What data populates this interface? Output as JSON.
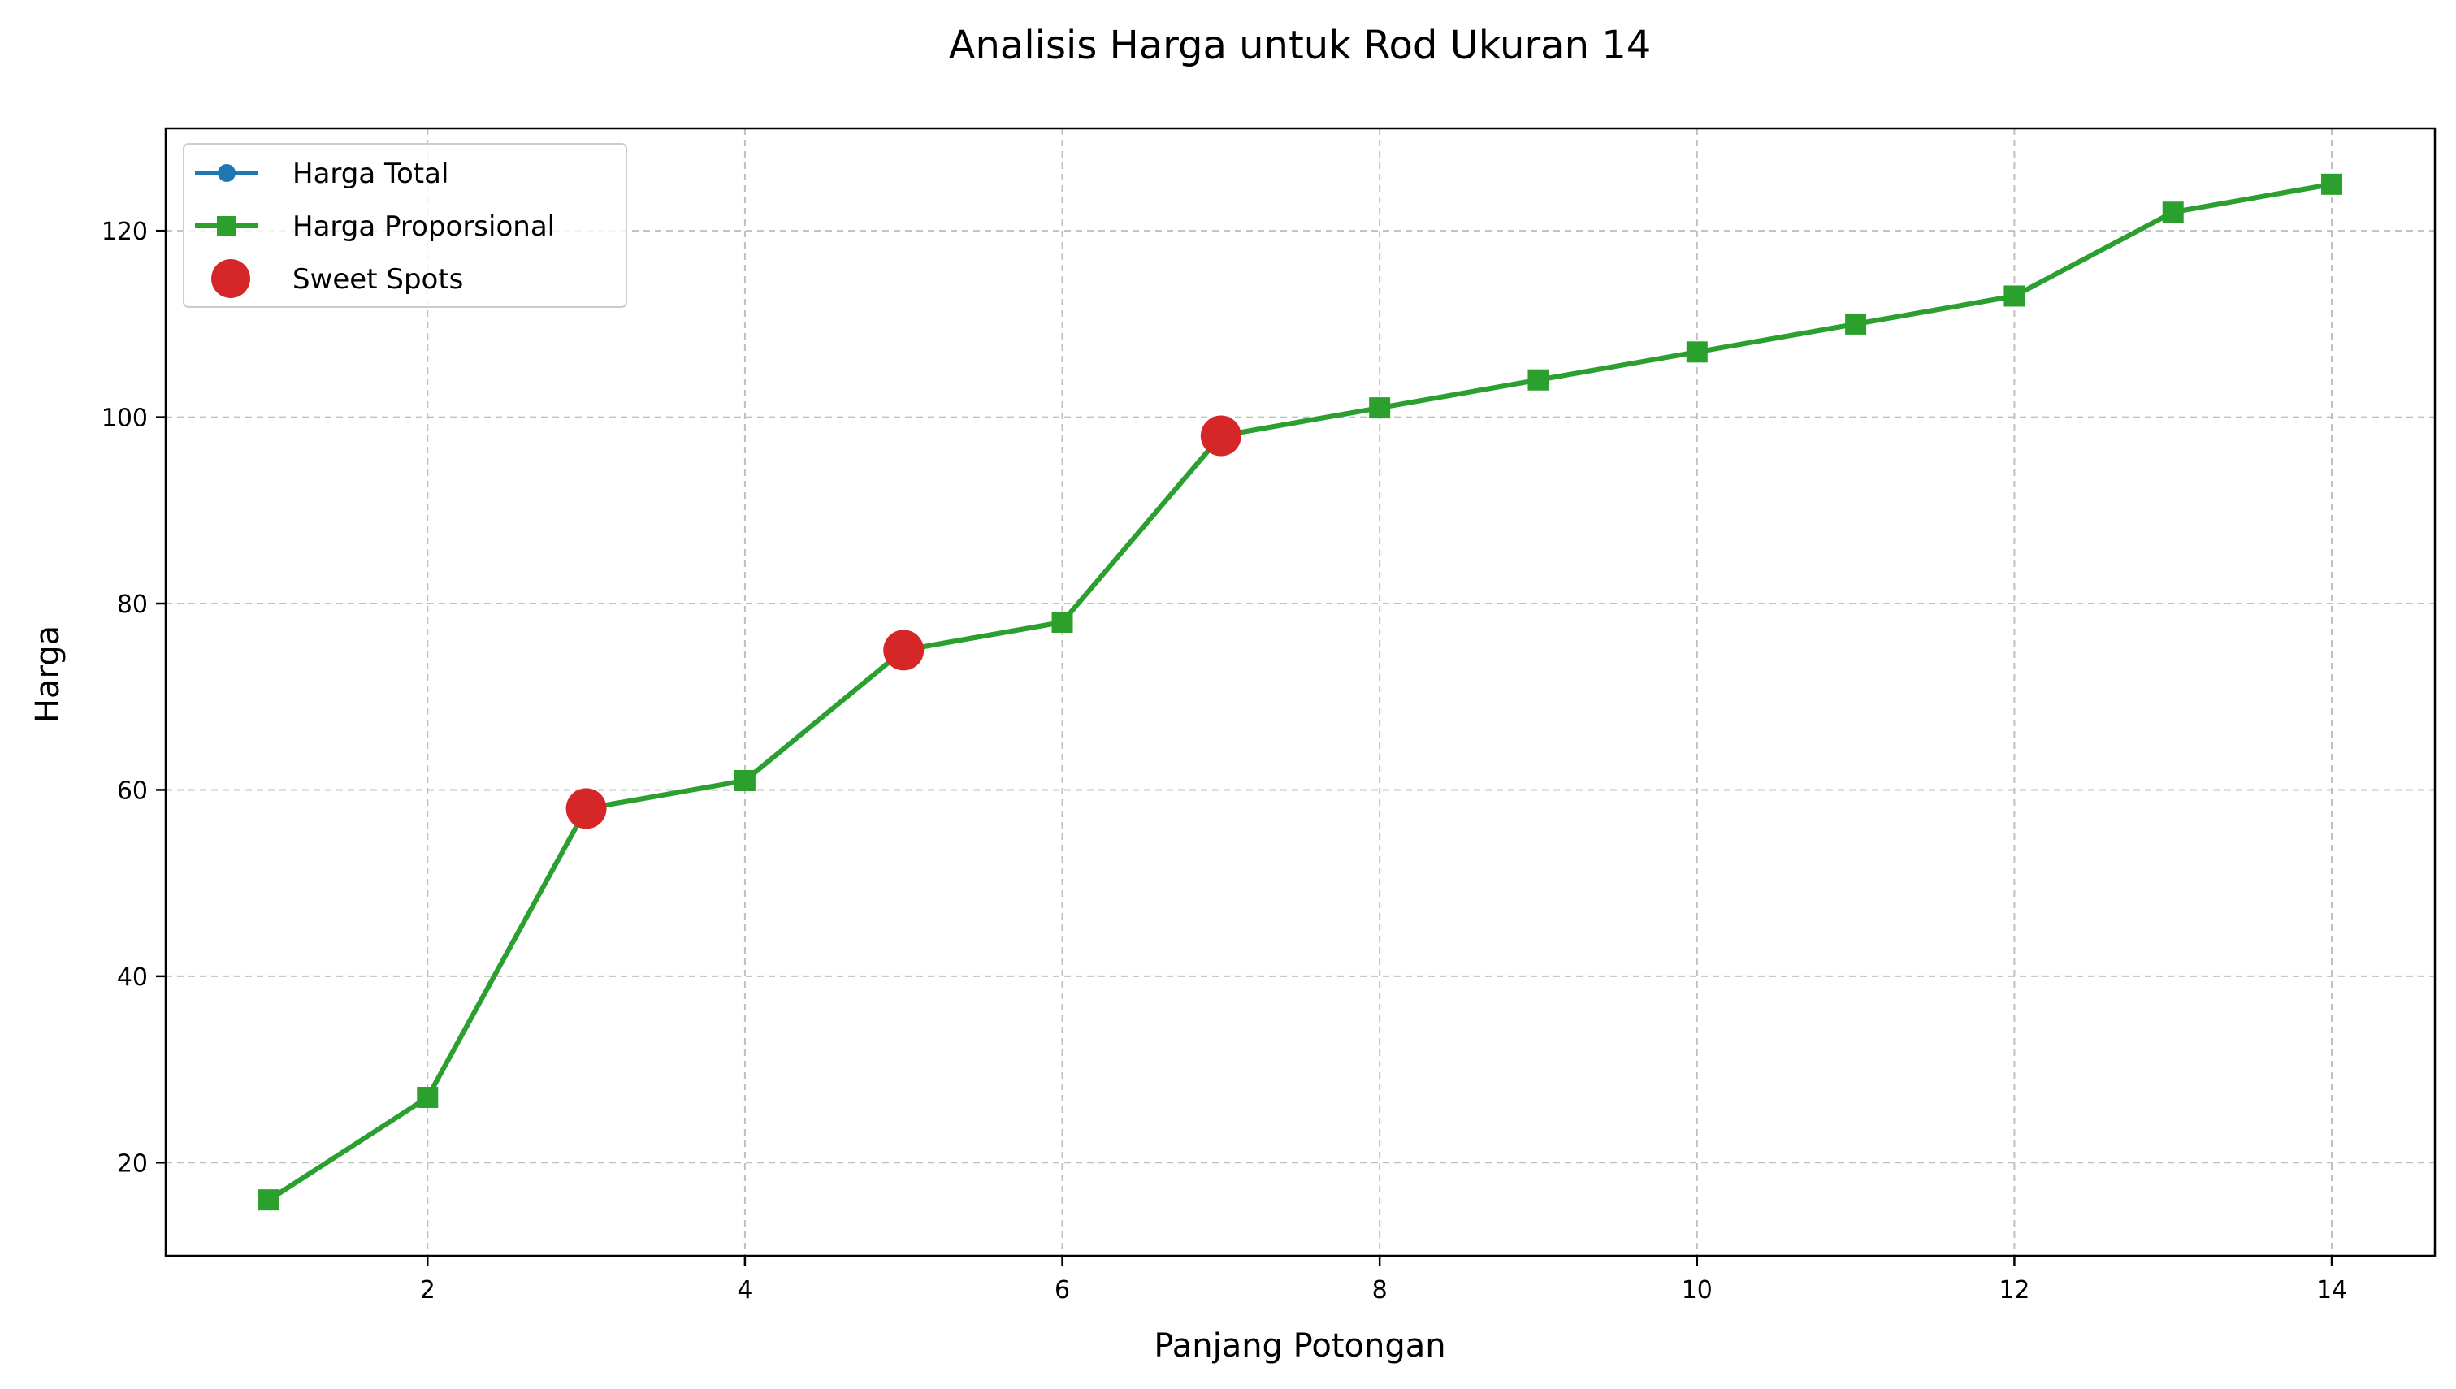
{
  "chart_data": {
    "type": "line",
    "title": "Analisis Harga untuk Rod Ukuran 14",
    "xlabel": "Panjang Potongan",
    "ylabel": "Harga",
    "xlim": [
      0.35,
      14.65
    ],
    "ylim": [
      10,
      131
    ],
    "xticks": [
      2,
      4,
      6,
      8,
      10,
      12,
      14
    ],
    "yticks": [
      20,
      40,
      60,
      80,
      100,
      120
    ],
    "grid": true,
    "legend_position": "top-left",
    "x": [
      1,
      2,
      3,
      4,
      5,
      6,
      7,
      8,
      9,
      10,
      11,
      12,
      13,
      14
    ],
    "series": [
      {
        "name": "Harga Total",
        "marker": "circle",
        "color": "#1f77b4",
        "values": [
          16,
          27,
          58,
          61,
          75,
          78,
          98,
          101,
          104,
          107,
          110,
          113,
          122,
          125
        ]
      },
      {
        "name": "Harga Proporsional",
        "marker": "square",
        "color": "#2ca02c",
        "values": [
          16,
          27,
          58,
          61,
          75,
          78,
          98,
          101,
          104,
          107,
          110,
          113,
          122,
          125
        ]
      }
    ],
    "sweet_spots": {
      "name": "Sweet Spots",
      "color": "#d62728",
      "points": [
        {
          "x": 3,
          "y": 58
        },
        {
          "x": 5,
          "y": 75
        },
        {
          "x": 7,
          "y": 98
        }
      ]
    }
  }
}
